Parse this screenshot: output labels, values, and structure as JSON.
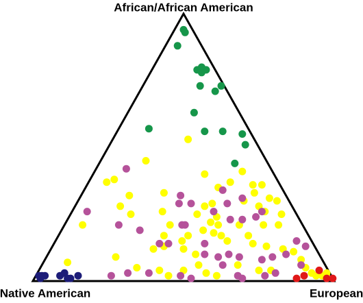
{
  "chart_data": {
    "type": "ternary",
    "top_label": "African/African American",
    "left_label": "Native American",
    "right_label": "European",
    "series": [
      {
        "color": "#16964a",
        "african": [
          0.94,
          0.93,
          0.88,
          0.8,
          0.79,
          0.78,
          0.79,
          0.73,
          0.71,
          0.73,
          0.63,
          0.57,
          0.56,
          0.56,
          0.55,
          0.51,
          0.44
        ],
        "european": [
          0.03,
          0.04,
          0.04,
          0.16,
          0.18,
          0.17,
          0.15,
          0.19,
          0.25,
          0.26,
          0.22,
          0.1,
          0.29,
          0.35,
          0.42,
          0.45,
          0.45
        ]
      },
      {
        "color": "#ffff00",
        "african": [
          0.37,
          0.38,
          0.45,
          0.53,
          0.4,
          0.35,
          0.37,
          0.41,
          0.36,
          0.36,
          0.33,
          0.3,
          0.28,
          0.31,
          0.3,
          0.26,
          0.25,
          0.21,
          0.21,
          0.32,
          0.28,
          0.25,
          0.21,
          0.33,
          0.26,
          0.21,
          0.17,
          0.13,
          0.28,
          0.25,
          0.22,
          0.21,
          0.18,
          0.24,
          0.19,
          0.17,
          0.15,
          0.21,
          0.17,
          0.14,
          0.13,
          0.12,
          0.11,
          0.08,
          0.05,
          0.03,
          0.02,
          0.02,
          0.03,
          0.09,
          0.07,
          0.05,
          0.04,
          0.02,
          0.04,
          0.06,
          0.03,
          0.02,
          0.1,
          0.12,
          0.12,
          0.06,
          0.04,
          0.04,
          0.29,
          0.17,
          0.15
        ],
        "european": [
          0.06,
          0.08,
          0.15,
          0.25,
          0.37,
          0.44,
          0.47,
          0.49,
          0.55,
          0.58,
          0.57,
          0.55,
          0.61,
          0.63,
          0.66,
          0.64,
          0.7,
          0.71,
          0.66,
          0.16,
          0.15,
          0.2,
          0.06,
          0.27,
          0.3,
          0.35,
          0.35,
          0.37,
          0.43,
          0.42,
          0.48,
          0.51,
          0.51,
          0.49,
          0.47,
          0.54,
          0.57,
          0.58,
          0.63,
          0.66,
          0.71,
          0.77,
          0.81,
          0.85,
          0.88,
          0.91,
          0.93,
          0.95,
          0.96,
          0.23,
          0.08,
          0.32,
          0.4,
          0.44,
          0.48,
          0.52,
          0.56,
          0.6,
          0.49,
          0.44,
          0.34,
          0.65,
          0.73,
          0.77,
          0.45,
          0.43,
          0.42
        ]
      },
      {
        "color": "#b5529a",
        "african": [
          0.42,
          0.26,
          0.21,
          0.19,
          0.14,
          0.32,
          0.29,
          0.26,
          0.34,
          0.29,
          0.31,
          0.23,
          0.23,
          0.24,
          0.26,
          0.21,
          0.21,
          0.14,
          0.14,
          0.09,
          0.1,
          0.06,
          0.09,
          0.1,
          0.02,
          0.02,
          0.09,
          0.1,
          0.15,
          0.13,
          0.06,
          0.02,
          0.03,
          0.03,
          0.02,
          0.01,
          0.08,
          0.03,
          0.01,
          0.29
        ],
        "european": [
          0.1,
          0.05,
          0.18,
          0.26,
          0.35,
          0.33,
          0.38,
          0.47,
          0.46,
          0.5,
          0.54,
          0.54,
          0.58,
          0.62,
          0.63,
          0.39,
          0.4,
          0.38,
          0.5,
          0.57,
          0.6,
          0.6,
          0.64,
          0.52,
          0.67,
          0.76,
          0.75,
          0.79,
          0.8,
          0.84,
          0.86,
          0.25,
          0.3,
          0.37,
          0.48,
          0.52,
          0.72,
          0.79,
          0.69,
          0.34
        ]
      },
      {
        "color": "#e01818",
        "african": [
          0.04,
          0.01,
          0.01,
          0.01,
          0.02
        ],
        "european": [
          0.93,
          0.97,
          0.99,
          0.87,
          0.89
        ]
      },
      {
        "color": "#1c1c78",
        "african": [
          0.02,
          0.02,
          0.02,
          0.01,
          0.02,
          0.03,
          0.01,
          0.01,
          0.02
        ],
        "european": [
          0.01,
          0.02,
          0.03,
          0.02,
          0.08,
          0.09,
          0.11,
          0.12,
          0.14
        ]
      }
    ]
  }
}
